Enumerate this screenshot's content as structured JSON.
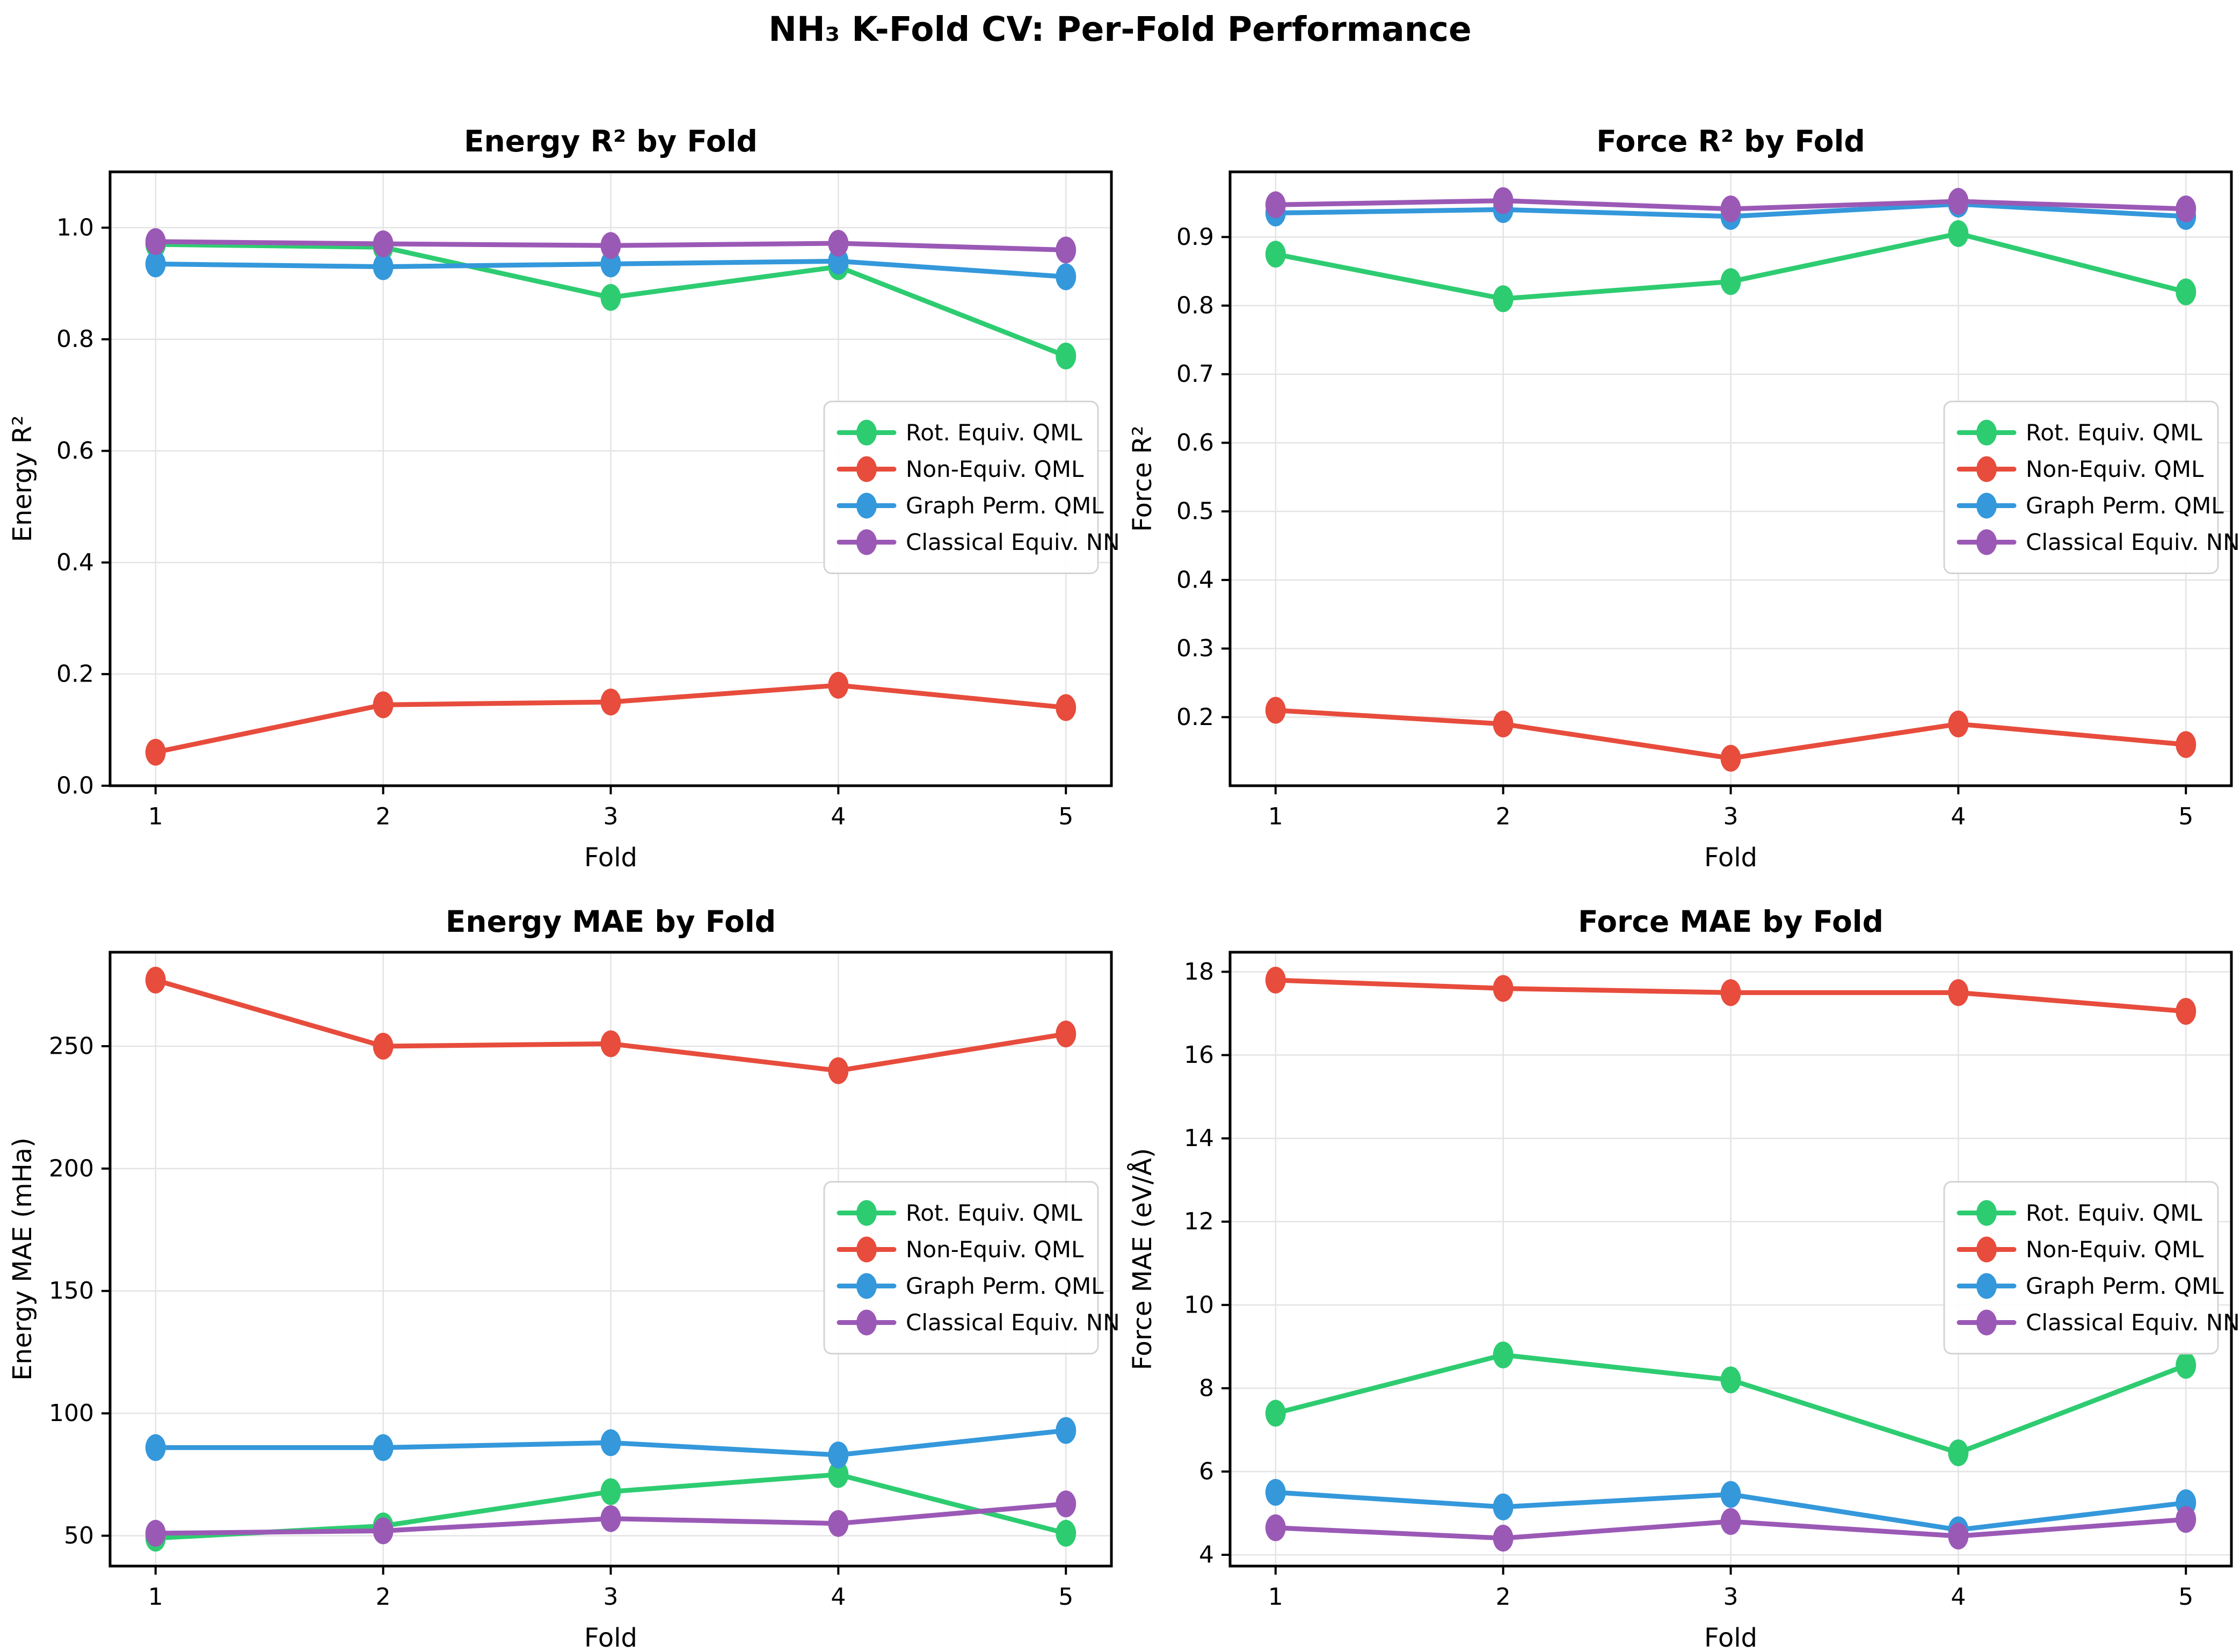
{
  "figure": {
    "suptitle": "NH₃ K-Fold CV: Per-Fold Performance",
    "xlabel": "Fold",
    "x_ticks": [
      1,
      2,
      3,
      4,
      5
    ],
    "x_tick_labels": [
      "1",
      "2",
      "3",
      "4",
      "5"
    ],
    "xlim": [
      0.8,
      5.2
    ],
    "background_color": "#ffffff",
    "grid_color": "#e4e4e4",
    "spine_color": "#000000",
    "legend_border_color": "#d4d4d4"
  },
  "palette": {
    "rot_equiv_qml": "#2ecc71",
    "non_equiv_qml": "#e74c3c",
    "graph_perm_qml": "#3498db",
    "classical_equiv_nn": "#9b59b6"
  },
  "legend_labels": [
    "Rot. Equiv. QML",
    "Non-Equiv. QML",
    "Graph Perm. QML",
    "Classical Equiv. NN"
  ],
  "chart_data": [
    {
      "type": "line",
      "title": "Energy R² by Fold",
      "xlabel": "Fold",
      "ylabel": "Energy R²",
      "x": [
        1,
        2,
        3,
        4,
        5
      ],
      "ylim": [
        0.0,
        1.1
      ],
      "yticks": [
        0.0,
        0.2,
        0.4,
        0.6,
        0.8,
        1.0
      ],
      "ytick_labels": [
        "0.0",
        "0.2",
        "0.4",
        "0.6",
        "0.8",
        "1.0"
      ],
      "grid": true,
      "legend_position": "center-right",
      "series": [
        {
          "name": "Rot. Equiv. QML",
          "color": "#2ecc71",
          "values": [
            0.97,
            0.965,
            0.875,
            0.93,
            0.77
          ]
        },
        {
          "name": "Non-Equiv. QML",
          "color": "#e74c3c",
          "values": [
            0.06,
            0.145,
            0.15,
            0.18,
            0.14
          ]
        },
        {
          "name": "Graph Perm. QML",
          "color": "#3498db",
          "values": [
            0.935,
            0.93,
            0.935,
            0.94,
            0.912
          ]
        },
        {
          "name": "Classical Equiv. NN",
          "color": "#9b59b6",
          "values": [
            0.975,
            0.971,
            0.968,
            0.972,
            0.96
          ]
        }
      ]
    },
    {
      "type": "line",
      "title": "Force R² by Fold",
      "xlabel": "Fold",
      "ylabel": "Force R²",
      "x": [
        1,
        2,
        3,
        4,
        5
      ],
      "ylim": [
        0.1,
        0.995
      ],
      "yticks": [
        0.2,
        0.3,
        0.4,
        0.5,
        0.6,
        0.7,
        0.8,
        0.9
      ],
      "ytick_labels": [
        "0.2",
        "0.3",
        "0.4",
        "0.5",
        "0.6",
        "0.7",
        "0.8",
        "0.9"
      ],
      "grid": true,
      "legend_position": "center-right",
      "series": [
        {
          "name": "Rot. Equiv. QML",
          "color": "#2ecc71",
          "values": [
            0.875,
            0.81,
            0.835,
            0.905,
            0.82
          ]
        },
        {
          "name": "Non-Equiv. QML",
          "color": "#e74c3c",
          "values": [
            0.21,
            0.19,
            0.14,
            0.19,
            0.16
          ]
        },
        {
          "name": "Graph Perm. QML",
          "color": "#3498db",
          "values": [
            0.935,
            0.94,
            0.93,
            0.948,
            0.93
          ]
        },
        {
          "name": "Classical Equiv. NN",
          "color": "#9b59b6",
          "values": [
            0.947,
            0.953,
            0.941,
            0.952,
            0.941
          ]
        }
      ]
    },
    {
      "type": "line",
      "title": "Energy MAE by Fold",
      "xlabel": "Fold",
      "ylabel": "Energy MAE (mHa)",
      "x": [
        1,
        2,
        3,
        4,
        5
      ],
      "ylim": [
        37.6,
        288.4
      ],
      "yticks": [
        50,
        100,
        150,
        200,
        250
      ],
      "ytick_labels": [
        "50",
        "100",
        "150",
        "200",
        "250"
      ],
      "grid": true,
      "legend_position": "center-right",
      "series": [
        {
          "name": "Rot. Equiv. QML",
          "color": "#2ecc71",
          "values": [
            49,
            54,
            68,
            75,
            51
          ]
        },
        {
          "name": "Non-Equiv. QML",
          "color": "#e74c3c",
          "values": [
            277,
            250,
            251,
            240,
            255
          ]
        },
        {
          "name": "Graph Perm. QML",
          "color": "#3498db",
          "values": [
            86,
            86,
            88,
            83,
            93
          ]
        },
        {
          "name": "Classical Equiv. NN",
          "color": "#9b59b6",
          "values": [
            51,
            52,
            57,
            55,
            63
          ]
        }
      ]
    },
    {
      "type": "line",
      "title": "Force MAE by Fold",
      "xlabel": "Fold",
      "ylabel": "Force MAE (eV/Å)",
      "x": [
        1,
        2,
        3,
        4,
        5
      ],
      "ylim": [
        3.73,
        18.47
      ],
      "yticks": [
        4,
        6,
        8,
        10,
        12,
        14,
        16,
        18
      ],
      "ytick_labels": [
        "4",
        "6",
        "8",
        "10",
        "12",
        "14",
        "16",
        "18"
      ],
      "grid": true,
      "legend_position": "center-right",
      "series": [
        {
          "name": "Rot. Equiv. QML",
          "color": "#2ecc71",
          "values": [
            7.4,
            8.8,
            8.2,
            6.45,
            8.55
          ]
        },
        {
          "name": "Non-Equiv. QML",
          "color": "#e74c3c",
          "values": [
            17.8,
            17.6,
            17.5,
            17.5,
            17.05
          ]
        },
        {
          "name": "Graph Perm. QML",
          "color": "#3498db",
          "values": [
            5.5,
            5.15,
            5.45,
            4.6,
            5.25
          ]
        },
        {
          "name": "Classical Equiv. NN",
          "color": "#9b59b6",
          "values": [
            4.65,
            4.4,
            4.8,
            4.45,
            4.85
          ]
        }
      ]
    }
  ]
}
